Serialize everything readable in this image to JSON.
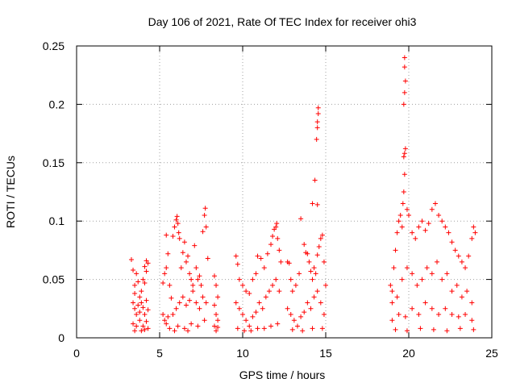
{
  "chart_data": {
    "type": "scatter",
    "title": "Day 106 of 2021, Rate Of TEC Index for receiver ohi3",
    "xlabel": "GPS time / hours",
    "ylabel": "ROTI / TECUs",
    "xlim": [
      0,
      25
    ],
    "ylim": [
      0,
      0.25
    ],
    "xticks": [
      0,
      5,
      10,
      15,
      20,
      25
    ],
    "xtick_labels": [
      "0",
      "5",
      "10",
      "15",
      "20",
      "25"
    ],
    "yticks": [
      0,
      0.05,
      0.1,
      0.15,
      0.2,
      0.25
    ],
    "ytick_labels": [
      "0",
      "0.05",
      "0.1",
      "0.15",
      "0.2",
      "0.25"
    ],
    "grid": true,
    "marker": "+",
    "series_color": "#ff0000",
    "series": [
      {
        "name": "ROTI",
        "points": [
          [
            3.3,
            0.067
          ],
          [
            3.4,
            0.058
          ],
          [
            3.5,
            0.045
          ],
          [
            3.5,
            0.038
          ],
          [
            3.6,
            0.055
          ],
          [
            3.7,
            0.048
          ],
          [
            3.8,
            0.035
          ],
          [
            3.9,
            0.04
          ],
          [
            4.0,
            0.05
          ],
          [
            4.1,
            0.061
          ],
          [
            4.2,
            0.066
          ],
          [
            4.3,
            0.064
          ],
          [
            4.2,
            0.057
          ],
          [
            4.1,
            0.047
          ],
          [
            3.4,
            0.03
          ],
          [
            3.5,
            0.025
          ],
          [
            3.6,
            0.02
          ],
          [
            3.7,
            0.028
          ],
          [
            3.8,
            0.022
          ],
          [
            3.9,
            0.03
          ],
          [
            4.0,
            0.026
          ],
          [
            4.1,
            0.02
          ],
          [
            4.2,
            0.032
          ],
          [
            4.3,
            0.024
          ],
          [
            3.4,
            0.012
          ],
          [
            3.6,
            0.01
          ],
          [
            3.8,
            0.015
          ],
          [
            4.0,
            0.01
          ],
          [
            4.2,
            0.014
          ],
          [
            4.3,
            0.008
          ],
          [
            3.5,
            0.006
          ],
          [
            3.9,
            0.006
          ],
          [
            4.1,
            0.007
          ],
          [
            5.2,
            0.047
          ],
          [
            5.3,
            0.055
          ],
          [
            5.4,
            0.06
          ],
          [
            5.4,
            0.088
          ],
          [
            5.5,
            0.072
          ],
          [
            5.6,
            0.045
          ],
          [
            5.7,
            0.034
          ],
          [
            5.8,
            0.087
          ],
          [
            5.9,
            0.095
          ],
          [
            6.0,
            0.101
          ],
          [
            6.05,
            0.104
          ],
          [
            6.1,
            0.098
          ],
          [
            6.15,
            0.09
          ],
          [
            6.2,
            0.085
          ],
          [
            6.3,
            0.06
          ],
          [
            6.4,
            0.073
          ],
          [
            6.5,
            0.082
          ],
          [
            6.6,
            0.065
          ],
          [
            6.7,
            0.07
          ],
          [
            6.8,
            0.055
          ],
          [
            6.9,
            0.05
          ],
          [
            7.0,
            0.045
          ],
          [
            7.1,
            0.079
          ],
          [
            7.2,
            0.06
          ],
          [
            7.3,
            0.05
          ],
          [
            7.4,
            0.053
          ],
          [
            7.5,
            0.045
          ],
          [
            7.6,
            0.091
          ],
          [
            7.7,
            0.105
          ],
          [
            7.75,
            0.111
          ],
          [
            7.8,
            0.095
          ],
          [
            7.9,
            0.068
          ],
          [
            5.2,
            0.02
          ],
          [
            5.3,
            0.015
          ],
          [
            5.4,
            0.012
          ],
          [
            5.5,
            0.018
          ],
          [
            5.6,
            0.008
          ],
          [
            5.8,
            0.02
          ],
          [
            6.0,
            0.025
          ],
          [
            6.2,
            0.03
          ],
          [
            6.4,
            0.035
          ],
          [
            6.6,
            0.028
          ],
          [
            6.8,
            0.032
          ],
          [
            7.0,
            0.04
          ],
          [
            7.2,
            0.03
          ],
          [
            7.4,
            0.025
          ],
          [
            7.6,
            0.035
          ],
          [
            7.8,
            0.03
          ],
          [
            6.1,
            0.01
          ],
          [
            6.5,
            0.008
          ],
          [
            6.9,
            0.012
          ],
          [
            7.3,
            0.01
          ],
          [
            7.7,
            0.015
          ],
          [
            5.9,
            0.006
          ],
          [
            6.7,
            0.006
          ],
          [
            8.3,
            0.053
          ],
          [
            8.4,
            0.045
          ],
          [
            8.5,
            0.035
          ],
          [
            8.3,
            0.028
          ],
          [
            8.4,
            0.02
          ],
          [
            8.5,
            0.015
          ],
          [
            8.3,
            0.01
          ],
          [
            8.4,
            0.006
          ],
          [
            8.5,
            0.009
          ],
          [
            9.6,
            0.07
          ],
          [
            9.7,
            0.063
          ],
          [
            9.8,
            0.05
          ],
          [
            10.0,
            0.045
          ],
          [
            10.2,
            0.04
          ],
          [
            10.4,
            0.038
          ],
          [
            10.6,
            0.05
          ],
          [
            10.8,
            0.055
          ],
          [
            10.9,
            0.07
          ],
          [
            11.1,
            0.068
          ],
          [
            11.3,
            0.06
          ],
          [
            11.5,
            0.072
          ],
          [
            11.7,
            0.08
          ],
          [
            11.8,
            0.087
          ],
          [
            11.9,
            0.093
          ],
          [
            12.0,
            0.095
          ],
          [
            12.05,
            0.098
          ],
          [
            12.1,
            0.085
          ],
          [
            12.2,
            0.075
          ],
          [
            12.3,
            0.065
          ],
          [
            9.6,
            0.03
          ],
          [
            9.8,
            0.025
          ],
          [
            10.0,
            0.02
          ],
          [
            10.2,
            0.015
          ],
          [
            10.4,
            0.01
          ],
          [
            10.6,
            0.018
          ],
          [
            10.8,
            0.022
          ],
          [
            11.0,
            0.03
          ],
          [
            11.2,
            0.025
          ],
          [
            11.4,
            0.035
          ],
          [
            11.6,
            0.04
          ],
          [
            11.8,
            0.045
          ],
          [
            12.0,
            0.05
          ],
          [
            12.2,
            0.04
          ],
          [
            9.7,
            0.008
          ],
          [
            10.1,
            0.006
          ],
          [
            10.5,
            0.006
          ],
          [
            10.9,
            0.008
          ],
          [
            11.3,
            0.008
          ],
          [
            11.7,
            0.01
          ],
          [
            12.1,
            0.012
          ],
          [
            12.7,
            0.065
          ],
          [
            12.8,
            0.064
          ],
          [
            12.9,
            0.05
          ],
          [
            13.0,
            0.04
          ],
          [
            13.2,
            0.045
          ],
          [
            13.4,
            0.055
          ],
          [
            13.5,
            0.102
          ],
          [
            13.7,
            0.08
          ],
          [
            13.8,
            0.073
          ],
          [
            13.9,
            0.072
          ],
          [
            14.0,
            0.065
          ],
          [
            14.1,
            0.057
          ],
          [
            14.2,
            0.05
          ],
          [
            14.3,
            0.06
          ],
          [
            14.4,
            0.055
          ],
          [
            14.5,
            0.071
          ],
          [
            14.6,
            0.078
          ],
          [
            14.7,
            0.085
          ],
          [
            14.8,
            0.088
          ],
          [
            14.9,
            0.065
          ],
          [
            15.0,
            0.045
          ],
          [
            14.2,
            0.115
          ],
          [
            14.35,
            0.135
          ],
          [
            14.45,
            0.17
          ],
          [
            14.5,
            0.18
          ],
          [
            14.5,
            0.185
          ],
          [
            14.55,
            0.192
          ],
          [
            14.55,
            0.197
          ],
          [
            14.5,
            0.114
          ],
          [
            12.7,
            0.025
          ],
          [
            12.9,
            0.02
          ],
          [
            13.1,
            0.015
          ],
          [
            13.3,
            0.01
          ],
          [
            13.5,
            0.018
          ],
          [
            13.7,
            0.022
          ],
          [
            13.9,
            0.03
          ],
          [
            14.1,
            0.025
          ],
          [
            14.3,
            0.035
          ],
          [
            14.5,
            0.04
          ],
          [
            14.7,
            0.03
          ],
          [
            14.9,
            0.02
          ],
          [
            13.0,
            0.007
          ],
          [
            13.6,
            0.006
          ],
          [
            14.2,
            0.008
          ],
          [
            14.8,
            0.008
          ],
          [
            18.9,
            0.045
          ],
          [
            19.0,
            0.04
          ],
          [
            19.1,
            0.06
          ],
          [
            19.2,
            0.075
          ],
          [
            19.3,
            0.09
          ],
          [
            19.4,
            0.1
          ],
          [
            19.5,
            0.105
          ],
          [
            19.6,
            0.095
          ],
          [
            19.65,
            0.115
          ],
          [
            19.7,
            0.125
          ],
          [
            19.75,
            0.14
          ],
          [
            19.7,
            0.155
          ],
          [
            19.75,
            0.158
          ],
          [
            19.8,
            0.162
          ],
          [
            19.7,
            0.2
          ],
          [
            19.75,
            0.21
          ],
          [
            19.8,
            0.22
          ],
          [
            19.75,
            0.232
          ],
          [
            19.75,
            0.24
          ],
          [
            19.9,
            0.11
          ],
          [
            20.0,
            0.105
          ],
          [
            20.2,
            0.09
          ],
          [
            20.4,
            0.085
          ],
          [
            20.6,
            0.095
          ],
          [
            20.8,
            0.1
          ],
          [
            21.0,
            0.092
          ],
          [
            21.2,
            0.098
          ],
          [
            21.4,
            0.11
          ],
          [
            21.6,
            0.115
          ],
          [
            21.8,
            0.105
          ],
          [
            22.0,
            0.1
          ],
          [
            22.2,
            0.095
          ],
          [
            22.4,
            0.09
          ],
          [
            22.6,
            0.082
          ],
          [
            22.8,
            0.075
          ],
          [
            23.0,
            0.07
          ],
          [
            23.2,
            0.065
          ],
          [
            23.4,
            0.06
          ],
          [
            23.6,
            0.07
          ],
          [
            23.8,
            0.085
          ],
          [
            23.9,
            0.095
          ],
          [
            24.0,
            0.09
          ],
          [
            19.0,
            0.03
          ],
          [
            19.3,
            0.035
          ],
          [
            19.6,
            0.05
          ],
          [
            19.9,
            0.06
          ],
          [
            20.2,
            0.055
          ],
          [
            20.5,
            0.045
          ],
          [
            20.8,
            0.05
          ],
          [
            21.1,
            0.06
          ],
          [
            21.4,
            0.055
          ],
          [
            21.7,
            0.065
          ],
          [
            22.0,
            0.05
          ],
          [
            22.3,
            0.055
          ],
          [
            22.6,
            0.04
          ],
          [
            22.9,
            0.045
          ],
          [
            23.2,
            0.035
          ],
          [
            23.5,
            0.04
          ],
          [
            23.8,
            0.03
          ],
          [
            19.0,
            0.015
          ],
          [
            19.4,
            0.02
          ],
          [
            19.8,
            0.018
          ],
          [
            20.2,
            0.025
          ],
          [
            20.6,
            0.02
          ],
          [
            21.0,
            0.03
          ],
          [
            21.4,
            0.025
          ],
          [
            21.8,
            0.02
          ],
          [
            22.2,
            0.025
          ],
          [
            22.6,
            0.02
          ],
          [
            23.0,
            0.018
          ],
          [
            23.4,
            0.02
          ],
          [
            23.8,
            0.015
          ],
          [
            19.2,
            0.007
          ],
          [
            19.9,
            0.006
          ],
          [
            20.7,
            0.008
          ],
          [
            21.5,
            0.007
          ],
          [
            22.3,
            0.006
          ],
          [
            23.1,
            0.008
          ],
          [
            23.9,
            0.007
          ]
        ]
      }
    ]
  }
}
